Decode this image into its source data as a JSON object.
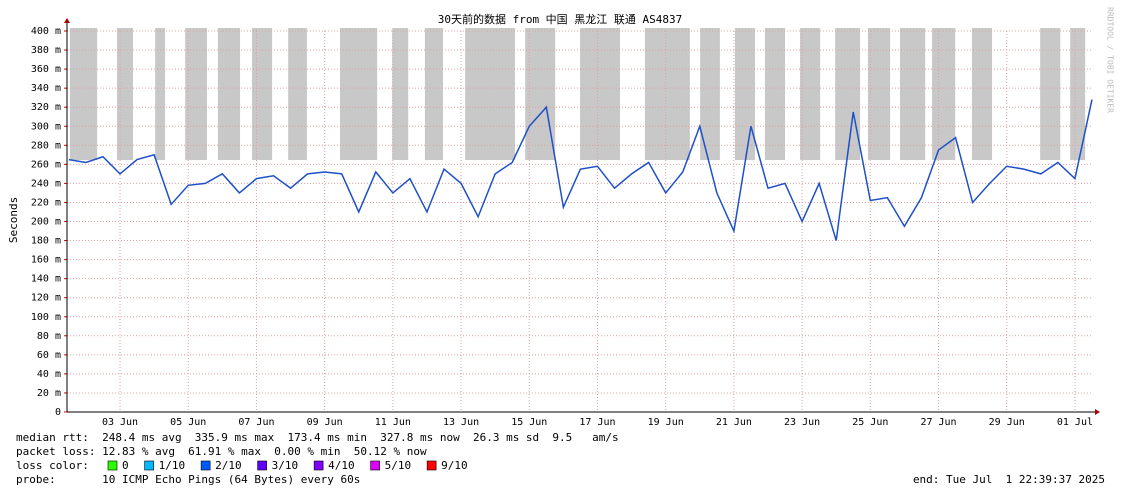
{
  "chart_data": {
    "type": "line",
    "title": "30天前的数据 from 中国 黑龙江 联通 AS4837",
    "y_label": "Seconds",
    "side_note": "RRDTOOL / TOBI OETIKER",
    "xlim": [
      1.445,
      31.53
    ],
    "xticks": [
      {
        "value": 3,
        "label": "03 Jun"
      },
      {
        "value": 5,
        "label": "05 Jun"
      },
      {
        "value": 7,
        "label": "07 Jun"
      },
      {
        "value": 9,
        "label": "09 Jun"
      },
      {
        "value": 11,
        "label": "11 Jun"
      },
      {
        "value": 13,
        "label": "13 Jun"
      },
      {
        "value": 15,
        "label": "15 Jun"
      },
      {
        "value": 17,
        "label": "17 Jun"
      },
      {
        "value": 19,
        "label": "19 Jun"
      },
      {
        "value": 21,
        "label": "21 Jun"
      },
      {
        "value": 23,
        "label": "23 Jun"
      },
      {
        "value": 25,
        "label": "25 Jun"
      },
      {
        "value": 27,
        "label": "27 Jun"
      },
      {
        "value": 29,
        "label": "29 Jun"
      },
      {
        "value": 31,
        "label": "01 Jul"
      }
    ],
    "ylim": [
      0,
      400
    ],
    "yticks": [
      0,
      {
        "value": 20,
        "label": "20 m"
      },
      {
        "value": 40,
        "label": "40 m"
      },
      {
        "value": 60,
        "label": "60 m"
      },
      {
        "value": 80,
        "label": "80 m"
      },
      {
        "value": 100,
        "label": "100 m"
      },
      {
        "value": 120,
        "label": "120 m"
      },
      {
        "value": 140,
        "label": "140 m"
      },
      {
        "value": 160,
        "label": "160 m"
      },
      {
        "value": 180,
        "label": "180 m"
      },
      {
        "value": 200,
        "label": "200 m"
      },
      {
        "value": 220,
        "label": "220 m"
      },
      {
        "value": 240,
        "label": "240 m"
      },
      {
        "value": 260,
        "label": "260 m"
      },
      {
        "value": 280,
        "label": "280 m"
      },
      {
        "value": 300,
        "label": "300 m"
      },
      {
        "value": 320,
        "label": "320 m"
      },
      {
        "value": 340,
        "label": "340 m"
      },
      {
        "value": 360,
        "label": "360 m"
      },
      {
        "value": 380,
        "label": "380 m"
      },
      {
        "value": 400,
        "label": "400 m"
      }
    ],
    "grid": true,
    "x": [
      1.5,
      2,
      2.5,
      3,
      3.5,
      4,
      4.5,
      5,
      5.5,
      6,
      6.5,
      7,
      7.5,
      8,
      8.5,
      9,
      9.5,
      10,
      10.5,
      11,
      11.5,
      12,
      12.5,
      13,
      13.5,
      14,
      14.5,
      15,
      15.5,
      16,
      16.5,
      17,
      17.5,
      18,
      18.5,
      19,
      19.5,
      20,
      20.5,
      21,
      21.5,
      22,
      22.5,
      23,
      23.5,
      24,
      24.5,
      25,
      25.5,
      26,
      26.5,
      27,
      27.5,
      28,
      28.5,
      29,
      29.5,
      30,
      30.5,
      31,
      31.5
    ],
    "series": [
      {
        "color": "#1e50c8",
        "values": [
          265,
          262,
          268,
          250,
          265,
          270,
          218,
          238,
          240,
          250,
          230,
          245,
          248,
          235,
          250,
          252,
          250,
          210,
          252,
          230,
          245,
          210,
          255,
          240,
          205,
          250,
          262,
          300,
          320,
          215,
          255,
          258,
          235,
          250,
          262,
          230,
          252,
          300,
          230,
          190,
          300,
          235,
          240,
          200,
          240,
          180,
          315,
          222,
          225,
          195,
          225,
          275,
          288,
          220,
          240,
          258,
          255,
          250,
          262,
          245,
          328
        ]
      }
    ],
    "loss_periods": [
      [
        1.53,
        2.33
      ],
      [
        2.91,
        3.38
      ],
      [
        4.03,
        4.32
      ],
      [
        4.91,
        5.55
      ],
      [
        5.87,
        6.52
      ],
      [
        6.87,
        7.46
      ],
      [
        7.93,
        8.48
      ],
      [
        9.45,
        10.54
      ],
      [
        10.98,
        11.45
      ],
      [
        11.94,
        12.47
      ],
      [
        13.12,
        14.58
      ],
      [
        14.88,
        15.76
      ],
      [
        16.49,
        17.66
      ],
      [
        18.39,
        19.71
      ],
      [
        20.01,
        20.59
      ],
      [
        21.03,
        21.62
      ],
      [
        21.91,
        22.5
      ],
      [
        22.94,
        23.53
      ],
      [
        23.97,
        24.7
      ],
      [
        24.93,
        25.58
      ],
      [
        25.87,
        26.61
      ],
      [
        26.81,
        27.49
      ],
      [
        27.98,
        28.57
      ],
      [
        29.98,
        30.57
      ],
      [
        30.86,
        31.3
      ]
    ],
    "footer": {
      "median_rtt": "median rtt:  248.4 ms avg  335.9 ms max  173.4 ms min  327.8 ms now  26.3 ms sd  9.5   am/s",
      "packet_loss": "packet loss: 12.83 % avg  61.91 % max  0.00 % min  50.12 % now",
      "loss_color_label": "loss color:",
      "loss_colors": [
        {
          "name": "0",
          "color": "#26ff00"
        },
        {
          "name": "1/10",
          "color": "#00b8ff"
        },
        {
          "name": "2/10",
          "color": "#0059ff"
        },
        {
          "name": "3/10",
          "color": "#5e00ff"
        },
        {
          "name": "4/10",
          "color": "#7e00ff"
        },
        {
          "name": "5/10",
          "color": "#dd00ff"
        },
        {
          "name": "9/10",
          "color": "#ff0000"
        }
      ],
      "probe": "probe:       10 ICMP Echo Pings (64 Bytes) every 60s",
      "end": "end: Tue Jul  1 22:39:37 2025"
    }
  }
}
